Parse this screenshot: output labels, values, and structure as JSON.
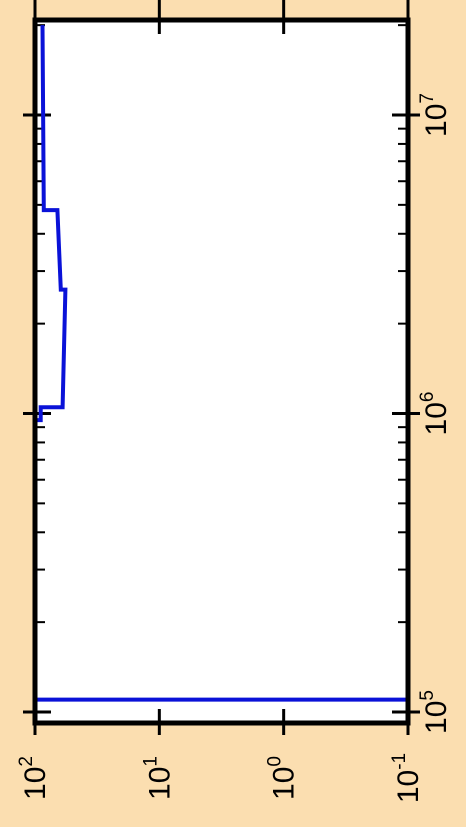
{
  "colors": {
    "background": "#fbdeb0",
    "plot_area": "#ffffff",
    "axis": "#000000",
    "series": "#0a12d8"
  },
  "chart_data": {
    "type": "line",
    "orientation": "rotated-90",
    "title": "",
    "xlabel": "",
    "ylabel": "",
    "x_scale": "log",
    "y_scale": "log",
    "xlim": [
      100000,
      20000000
    ],
    "ylim": [
      0.1,
      100
    ],
    "grid": false,
    "x_tick_labels": [
      {
        "base": "10",
        "exp": "5",
        "value": 100000
      },
      {
        "base": "10",
        "exp": "6",
        "value": 1000000
      },
      {
        "base": "10",
        "exp": "7",
        "value": 10000000
      }
    ],
    "y_tick_labels": [
      {
        "base": "10",
        "exp": "2",
        "value": 100
      },
      {
        "base": "10",
        "exp": "1",
        "value": 10
      },
      {
        "base": "10",
        "exp": "0",
        "value": 1
      },
      {
        "base": "10",
        "exp": "-1",
        "value": 0.1
      }
    ],
    "series": [
      {
        "style": "step",
        "points": [
          [
            100000,
            0.1
          ],
          [
            110000,
            0.1
          ],
          [
            110000,
            100
          ],
          [
            950000,
            100
          ],
          [
            950000,
            90
          ],
          [
            1050000,
            90
          ],
          [
            1050000,
            60
          ],
          [
            2600000,
            57
          ],
          [
            2600000,
            62
          ],
          [
            4800000,
            66
          ],
          [
            4800000,
            85
          ],
          [
            20000000,
            87
          ]
        ]
      }
    ]
  }
}
